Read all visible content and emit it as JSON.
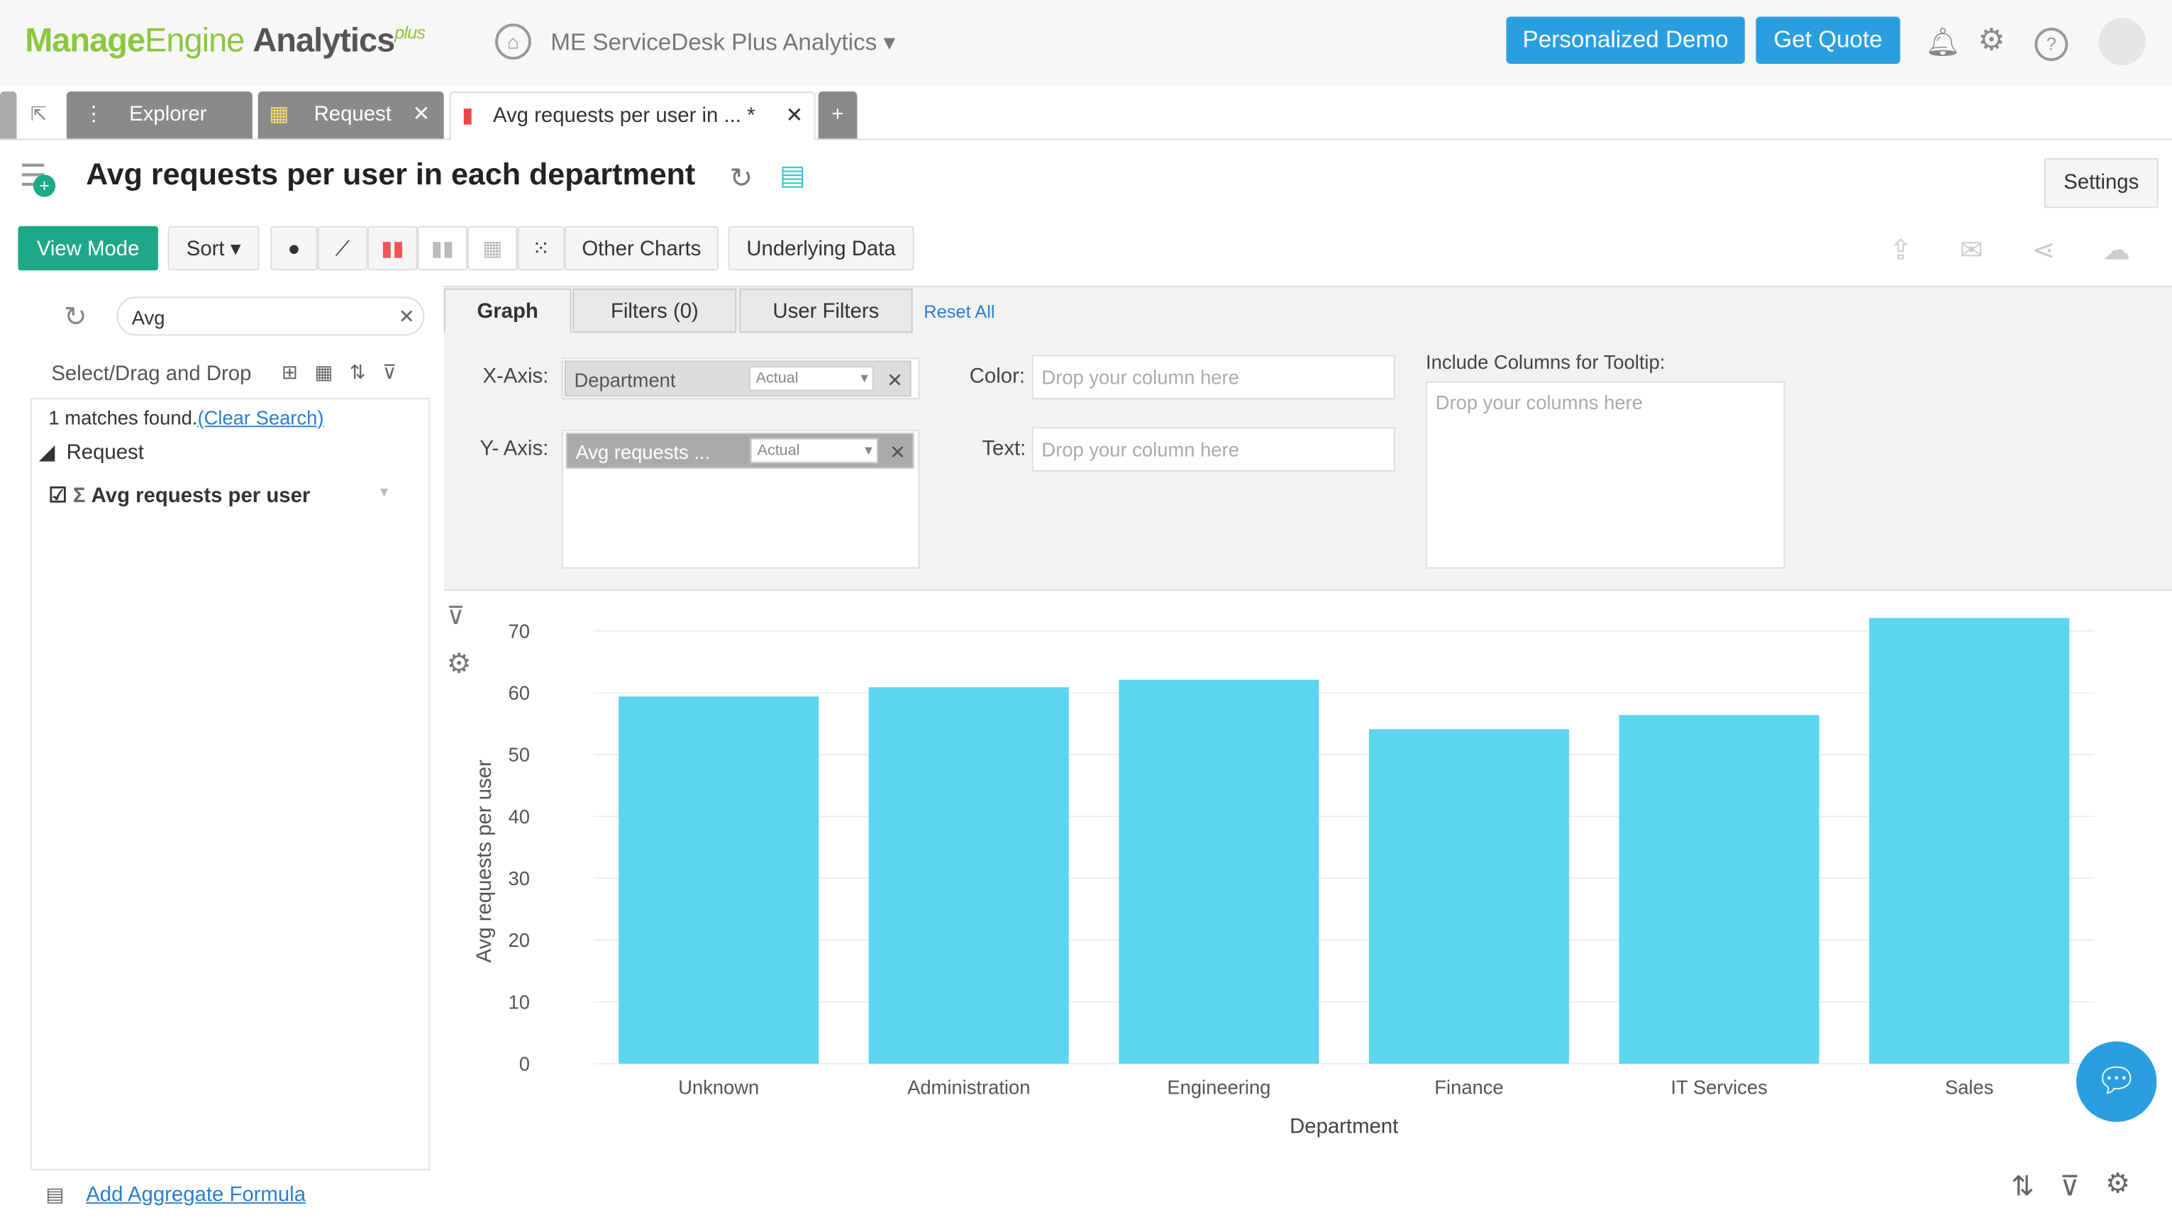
{
  "header": {
    "logo": "ManageEngine Analytics Plus",
    "logo_parts": [
      "Manage",
      "Engine",
      "Analytics",
      "plus"
    ],
    "workspace": "ME ServiceDesk Plus Analytics",
    "personalized_demo": "Personalized Demo",
    "get_quote": "Get Quote"
  },
  "tabs": [
    {
      "label": "Explorer"
    },
    {
      "label": "Request"
    },
    {
      "label": "Avg requests per user in ...",
      "modified": "*"
    }
  ],
  "report": {
    "title": "Avg requests per user in each department",
    "settings": "Settings"
  },
  "toolbar": {
    "view_mode": "View Mode",
    "sort": "Sort",
    "other_charts": "Other Charts",
    "underlying_data": "Underlying Data"
  },
  "left": {
    "search_value": "Avg",
    "select_drag": "Select/Drag and Drop",
    "matches": "1 matches found.",
    "clear_search": "(Clear Search)",
    "table": "Request",
    "column": "Avg requests per user",
    "add_formula": "Add Aggregate Formula"
  },
  "panel": {
    "tabs": [
      "Graph",
      "Filters (0)",
      "User Filters"
    ],
    "reset_all": "Reset All",
    "x_axis_label": "X-Axis:",
    "x_axis_value": "Department",
    "x_axis_agg": "Actual",
    "y_axis_label": "Y- Axis:",
    "y_axis_value": "Avg requests ...",
    "y_axis_agg": "Actual",
    "color_label": "Color:",
    "color_placeholder": "Drop your column here",
    "text_label": "Text:",
    "text_placeholder": "Drop your column here",
    "tooltip_label": "Include Columns for Tooltip:",
    "tooltip_placeholder": "Drop your columns here"
  },
  "chart_data": {
    "type": "bar",
    "categories": [
      "Unknown",
      "Administration",
      "Engineering",
      "Finance",
      "IT Services",
      "Sales"
    ],
    "values": [
      59.4,
      60.9,
      62.1,
      54.1,
      56.4,
      72.1
    ],
    "xlabel": "Department",
    "ylabel": "Avg requests per user",
    "ylim": [
      0,
      70
    ],
    "yticks": [
      0,
      10,
      20,
      30,
      40,
      50,
      60,
      70
    ],
    "grid": true,
    "color": "#5bd6ee"
  },
  "colors": {
    "accent": "#2a9fe0",
    "view_mode": "#1ea888",
    "bar": "#5bd6ee"
  }
}
